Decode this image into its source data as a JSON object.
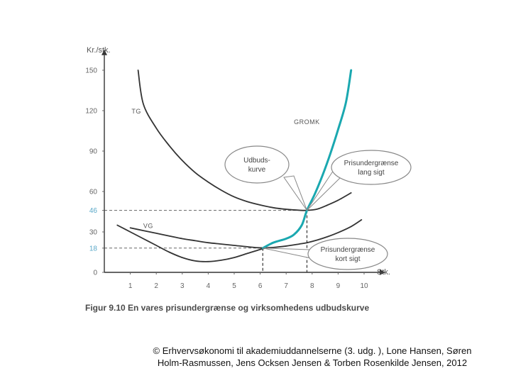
{
  "chart_data": {
    "type": "line",
    "ylabel": "Kr./stk.",
    "xlabel": "Stk.",
    "x_ticks": [
      1,
      2,
      3,
      4,
      5,
      6,
      7,
      8,
      9,
      10
    ],
    "y_ticks": [
      0,
      18,
      30,
      46,
      60,
      90,
      120,
      150
    ],
    "y_ticks_highlighted": [
      18,
      46
    ],
    "xlim": [
      0,
      10.6
    ],
    "ylim": [
      0,
      157
    ],
    "series": [
      {
        "name": "TG",
        "color": "#333333",
        "x": [
          1.3,
          1.5,
          2.0,
          2.5,
          3.0,
          3.5,
          4.0,
          4.5,
          5.0,
          5.5,
          6.0,
          6.5,
          7.0,
          7.5,
          7.8,
          8.2,
          8.6,
          9.0,
          9.5
        ],
        "y": [
          150,
          125,
          107,
          94,
          83,
          74,
          67,
          61,
          56,
          52.5,
          50,
          48,
          46.8,
          46.1,
          46,
          47,
          50,
          53.5,
          59
        ]
      },
      {
        "name": "VG",
        "color": "#333333",
        "x": [
          1.0,
          1.5,
          2.0,
          2.5,
          3.0,
          3.5,
          4.0,
          4.5,
          5.0,
          5.5,
          6.0,
          6.5,
          7.0,
          7.5,
          7.8,
          8.2,
          8.6,
          9.0,
          9.5,
          9.9
        ],
        "y": [
          33,
          31,
          29,
          27,
          25,
          23.5,
          22,
          21,
          20,
          19,
          18.2,
          18.5,
          19.5,
          21,
          22,
          24,
          26.5,
          29.5,
          34,
          39
        ]
      },
      {
        "name": "",
        "color": "#333333",
        "x": [
          0.5,
          1.0,
          1.5,
          2.0,
          2.5,
          3.0,
          3.5,
          4.0,
          4.5,
          5.0,
          5.5,
          6.0,
          6.2
        ],
        "y": [
          35,
          30,
          25,
          20,
          15,
          11,
          8.5,
          8,
          9,
          11,
          14,
          17,
          18
        ]
      },
      {
        "name": "GROMK",
        "color": "#1aa8b0",
        "x": [
          6.1,
          6.5,
          7.0,
          7.3,
          7.6,
          7.8,
          8.1,
          8.4,
          8.7,
          9.0,
          9.3,
          9.5
        ],
        "y": [
          18,
          22,
          25,
          28,
          35,
          46,
          58,
          72,
          88,
          106,
          126,
          150
        ]
      }
    ],
    "reference_lines": [
      {
        "y": 46,
        "x": 7.8
      },
      {
        "y": 18,
        "x": 6.1
      }
    ],
    "bubble_labels": [
      {
        "lines": [
          "Udbuds-",
          "kurve"
        ],
        "points_to": [
          7.8,
          46
        ]
      },
      {
        "lines": [
          "Prisundergrænse",
          "lang sigt"
        ],
        "points_to": [
          7.8,
          46
        ]
      },
      {
        "lines": [
          "Prisundergrænse",
          "kort sigt"
        ],
        "points_to": [
          6.1,
          18
        ]
      }
    ],
    "caption": "Figur 9.10  En vares prisundergrænse og virksomhedens udbudskurve"
  },
  "credit": {
    "line1": "© Erhvervsøkonomi til akademiuddannelserne (3. udg. ), Lone Hansen, Søren",
    "line2": "Holm-Rasmussen, Jens Ocksen Jensen & Torben Rosenkilde Jensen, 2012"
  }
}
